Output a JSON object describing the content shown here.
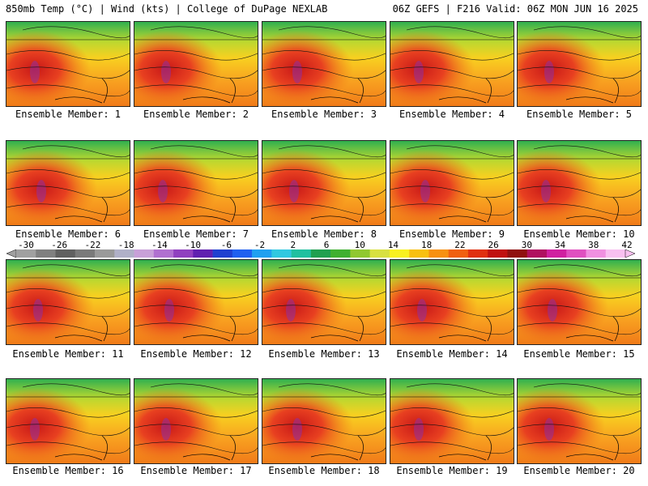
{
  "header": {
    "title_left": "850mb Temp (°C) | Wind (kts) | College of DuPage NEXLAB",
    "title_right": "06Z GEFS | F216 Valid: 06Z MON JUN 16 2025"
  },
  "panels": [
    {
      "label": "Ensemble Member: 1"
    },
    {
      "label": "Ensemble Member: 2"
    },
    {
      "label": "Ensemble Member: 3"
    },
    {
      "label": "Ensemble Member: 4"
    },
    {
      "label": "Ensemble Member: 5"
    },
    {
      "label": "Ensemble Member: 6"
    },
    {
      "label": "Ensemble Member: 7"
    },
    {
      "label": "Ensemble Member: 8"
    },
    {
      "label": "Ensemble Member: 9"
    },
    {
      "label": "Ensemble Member: 10"
    },
    {
      "label": "Ensemble Member: 11"
    },
    {
      "label": "Ensemble Member: 12"
    },
    {
      "label": "Ensemble Member: 13"
    },
    {
      "label": "Ensemble Member: 14"
    },
    {
      "label": "Ensemble Member: 15"
    },
    {
      "label": "Ensemble Member: 16"
    },
    {
      "label": "Ensemble Member: 17"
    },
    {
      "label": "Ensemble Member: 18"
    },
    {
      "label": "Ensemble Member: 19"
    },
    {
      "label": "Ensemble Member: 20"
    }
  ],
  "colorbar": {
    "labels": [
      "-30",
      "-26",
      "-22",
      "-18",
      "-14",
      "-10",
      "-6",
      "-2",
      "2",
      "6",
      "10",
      "14",
      "18",
      "22",
      "26",
      "30",
      "34",
      "38",
      "42"
    ],
    "colors": [
      "#a0a0a0",
      "#808080",
      "#606060",
      "#7a7a7a",
      "#9a9a9a",
      "#b0b0c8",
      "#c8a0d8",
      "#b070d0",
      "#9040c0",
      "#6020b0",
      "#2040d0",
      "#2060f0",
      "#20a0f0",
      "#30c8e0",
      "#20c0a0",
      "#20a050",
      "#40b030",
      "#90c830",
      "#d8e040",
      "#f8f020",
      "#f8c010",
      "#f89010",
      "#f06010",
      "#e03010",
      "#c01010",
      "#901010",
      "#b01060",
      "#d020a0",
      "#e050c0",
      "#f090e0",
      "#f8c0f0"
    ]
  }
}
